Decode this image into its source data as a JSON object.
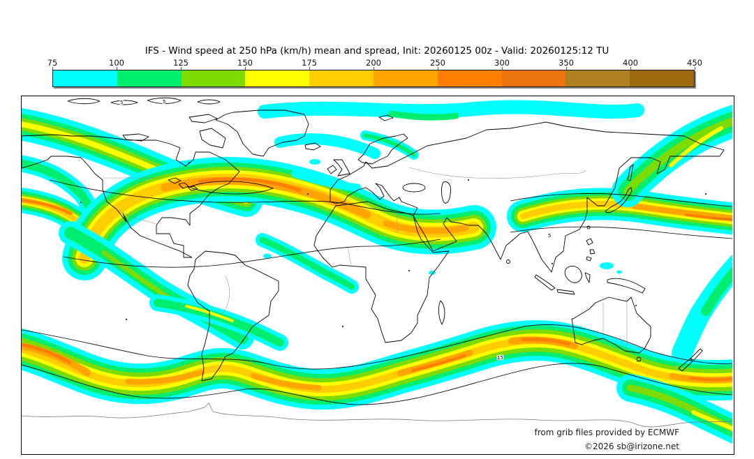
{
  "title": "IFS - Wind speed at 250 hPa (km/h) mean and spread, Init: 20260125 00z - Valid: 20260125:12 TU",
  "colorbar": {
    "unit": "km/h",
    "ticks": [
      "75",
      "100",
      "125",
      "150",
      "175",
      "200",
      "250",
      "300",
      "350",
      "400",
      "450"
    ],
    "segments": [
      {
        "range": "75-100",
        "color": "#00FFFF"
      },
      {
        "range": "100-125",
        "color": "#00EE70"
      },
      {
        "range": "125-150",
        "color": "#7CDB00"
      },
      {
        "range": "150-175",
        "color": "#FFFF00"
      },
      {
        "range": "175-200",
        "color": "#FFCE00"
      },
      {
        "range": "200-250",
        "color": "#FFA500"
      },
      {
        "range": "250-300",
        "color": "#FF8000"
      },
      {
        "range": "300-350",
        "color": "#EB7410"
      },
      {
        "range": "350-400",
        "color": "#AF801E"
      },
      {
        "range": "400-450",
        "color": "#9C690C"
      }
    ]
  },
  "map": {
    "attribution_line1": "from grib files provided by ECMWF",
    "attribution_line2": "©2026 sb@irizone.net",
    "contour_labels": [
      {
        "text": "5"
      },
      {
        "text": "5"
      },
      {
        "text": "5"
      },
      {
        "text": "15"
      }
    ]
  },
  "chart_data": {
    "type": "heatmap",
    "title": "IFS - Wind speed at 250 hPa (km/h) mean and spread, Init: 20260125 00z - Valid: 20260125:12 TU",
    "variable": "Wind speed at 250 hPa, ensemble mean (filled) and spread (black contours)",
    "unit": "km/h",
    "levels": [
      75,
      100,
      125,
      150,
      175,
      200,
      250,
      300,
      350,
      400,
      450
    ],
    "level_colors": [
      "#00FFFF",
      "#00EE70",
      "#7CDB00",
      "#FFFF00",
      "#FFCE00",
      "#FFA500",
      "#FF8000",
      "#EB7410",
      "#AF801E",
      "#9C690C"
    ],
    "legend_position": "top",
    "layout": "global equirectangular world map with jet-stream speed bands in both hemispheres"
  }
}
